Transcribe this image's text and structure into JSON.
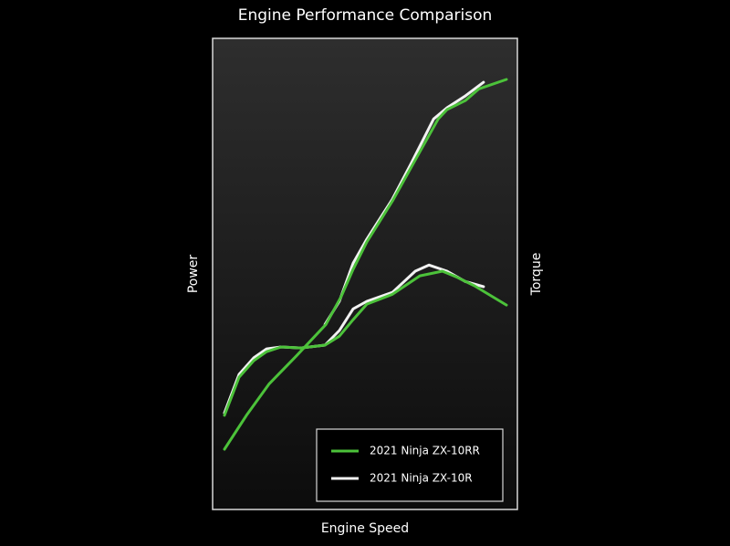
{
  "chart_data": {
    "type": "line",
    "title": "Engine Performance Comparison",
    "x_label": "Engine Speed",
    "y_label": "Power",
    "y2_label": "Torque",
    "series": [
      {
        "name": "2021 Ninja ZX-10RR",
        "color": "#4cc23a",
        "power": {
          "x": [
            3.9,
            11.1,
            18.6,
            27.5,
            37.2,
            42.2,
            46.1,
            50.6,
            59.0,
            66.5,
            74.0,
            76.9,
            82.9,
            87.4,
            96.4
          ],
          "values": [
            12.8,
            20.0,
            26.7,
            32.6,
            39.3,
            45.2,
            51.0,
            56.8,
            65.5,
            74.2,
            82.9,
            84.9,
            86.8,
            89.3,
            91.3
          ]
        },
        "torque": {
          "x": [
            3.9,
            8.7,
            13.5,
            17.7,
            22.5,
            29.0,
            36.9,
            41.6,
            46.1,
            50.6,
            59.0,
            68.0,
            75.4,
            79.9,
            85.9,
            96.4
          ],
          "values": [
            20.0,
            28.1,
            31.6,
            33.5,
            34.5,
            34.3,
            34.9,
            36.8,
            40.3,
            43.6,
            45.7,
            49.6,
            50.6,
            49.4,
            47.5,
            43.4
          ]
        }
      },
      {
        "name": "2021 Ninja ZX-10R",
        "color": "#f2f2f2",
        "power": {
          "x": [
            36.9,
            41.6,
            46.1,
            50.6,
            59.0,
            65.0,
            72.5,
            76.9,
            82.9,
            88.9
          ],
          "values": [
            39.3,
            44.2,
            52.3,
            57.4,
            65.9,
            73.3,
            82.9,
            85.3,
            87.8,
            90.7
          ]
        },
        "torque": {
          "x": [
            3.9,
            8.7,
            13.5,
            17.7,
            22.5,
            29.0,
            36.9,
            41.6,
            46.1,
            50.6,
            59.0,
            66.5,
            71.0,
            76.9,
            82.9,
            88.9
          ],
          "values": [
            20.5,
            28.7,
            32.2,
            34.1,
            34.5,
            34.3,
            34.9,
            38.0,
            42.6,
            44.2,
            46.1,
            50.6,
            51.9,
            50.6,
            48.4,
            47.3
          ]
        }
      }
    ]
  }
}
